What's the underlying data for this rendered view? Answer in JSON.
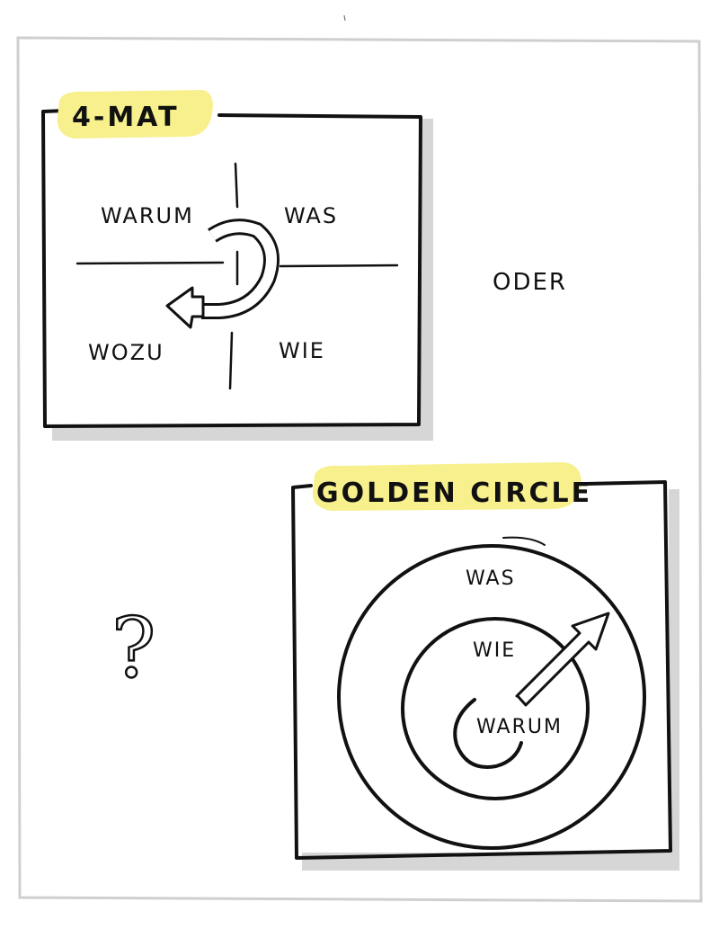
{
  "fourmat": {
    "title": "4-MAT",
    "quadrants": {
      "top_left": "WARUM",
      "top_right": "WAS",
      "bottom_left": "WOZU",
      "bottom_right": "WIE"
    },
    "cycle_icon": "circular-arrow-icon"
  },
  "connector": "ODER",
  "question": "?",
  "golden_circle": {
    "title": "GOLDEN CIRCLE",
    "outer": "WAS",
    "middle": "WIE",
    "inner": "WARUM",
    "arrow_icon": "outward-arrow-icon"
  },
  "colors": {
    "highlight": "#f7f08c",
    "ink": "#111111",
    "shadow": "#d6d6d6",
    "page_border": "#cfcfcf"
  }
}
